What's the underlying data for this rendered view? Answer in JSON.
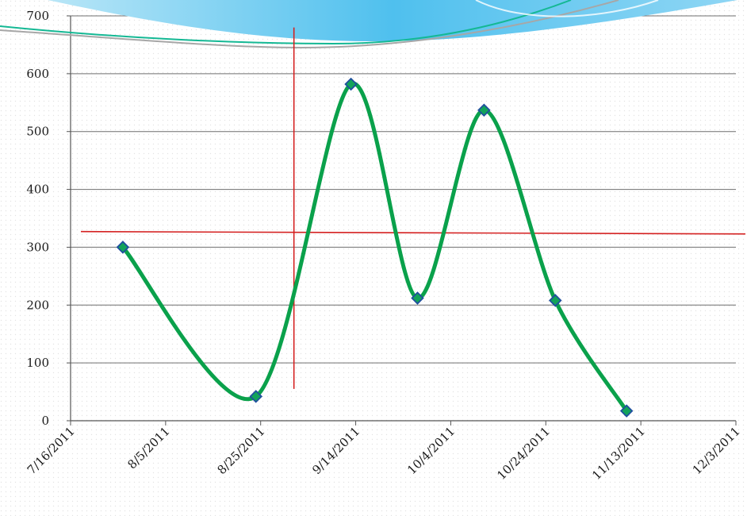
{
  "chart_data": {
    "type": "line",
    "title": "",
    "xlabel": "",
    "ylabel": "",
    "x_axis": {
      "type": "date",
      "range": [
        "7/16/2011",
        "12/3/2011"
      ],
      "tick_labels": [
        "7/16/2011",
        "8/5/2011",
        "8/25/2011",
        "9/14/2011",
        "10/4/2011",
        "10/24/2011",
        "11/13/2011",
        "12/3/2011"
      ]
    },
    "y_axis": {
      "range": [
        0,
        700
      ],
      "tick_labels": [
        "0",
        "100",
        "200",
        "300",
        "400",
        "500",
        "600",
        "700"
      ]
    },
    "gridlines": "horizontal",
    "legend": "none",
    "series": [
      {
        "smoothed": true,
        "line_color": "#0aa14b",
        "marker": "diamond",
        "marker_fill": "#12a35a",
        "marker_stroke": "#1f4f9e",
        "points": [
          {
            "x": "7/27/2011",
            "y": 300
          },
          {
            "x": "8/24/2011",
            "y": 42
          },
          {
            "x": "9/13/2011",
            "y": 582
          },
          {
            "x": "9/27/2011",
            "y": 212
          },
          {
            "x": "10/11/2011",
            "y": 537
          },
          {
            "x": "10/26/2011",
            "y": 208
          },
          {
            "x": "11/10/2011",
            "y": 17
          }
        ]
      }
    ],
    "annotations": [
      {
        "kind": "horizontal-reference-line",
        "y": 325,
        "color": "#d42020"
      },
      {
        "kind": "vertical-reference-line",
        "x": "9/1/2011",
        "y_range": [
          55,
          680
        ],
        "color": "#d42020"
      }
    ]
  }
}
